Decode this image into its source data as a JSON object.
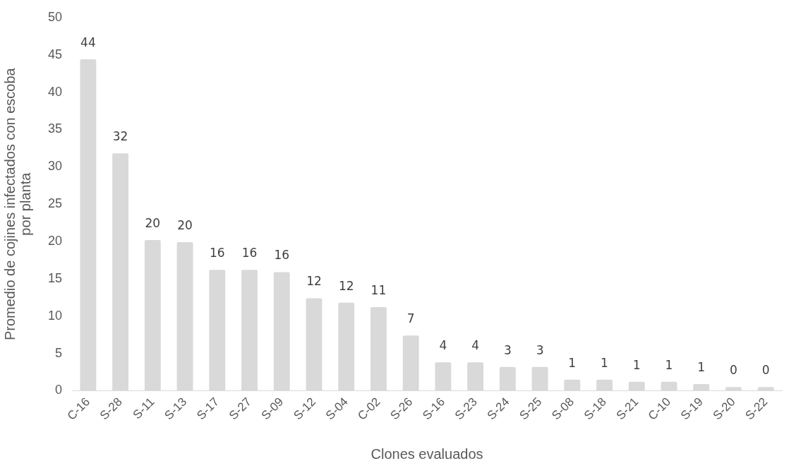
{
  "chart_data": {
    "type": "bar",
    "xlabel": "Clones evaluados",
    "ylabel": "Promedio de cojines infectados con escoba\npor planta",
    "categories": [
      "C-16",
      "S-28",
      "S-11",
      "S-13",
      "S-17",
      "S-27",
      "S-09",
      "S-12",
      "S-04",
      "C-02",
      "S-26",
      "S-16",
      "S-23",
      "S-24",
      "S-25",
      "S-08",
      "S-18",
      "S-21",
      "C-10",
      "S-19",
      "S-20",
      "S-22"
    ],
    "values": [
      44.4,
      31.8,
      20.2,
      19.9,
      16.2,
      16.2,
      15.9,
      12.4,
      11.8,
      11.2,
      7.4,
      3.8,
      3.8,
      3.2,
      3.2,
      1.5,
      1.5,
      1.2,
      1.2,
      0.9,
      0.5,
      0.5
    ],
    "value_labels": [
      "44",
      "32",
      "20",
      "20",
      "16",
      "16",
      "16",
      "12",
      "12",
      "11",
      "7",
      "4",
      "4",
      "3",
      "3",
      "1",
      "1",
      "1",
      "1",
      "1",
      "0",
      "0"
    ],
    "color": "#d9d9d9",
    "ylim": [
      0,
      50
    ],
    "yticks": [
      0,
      5,
      10,
      15,
      20,
      25,
      30,
      35,
      40,
      45,
      50
    ],
    "grid": false,
    "legend": false
  }
}
